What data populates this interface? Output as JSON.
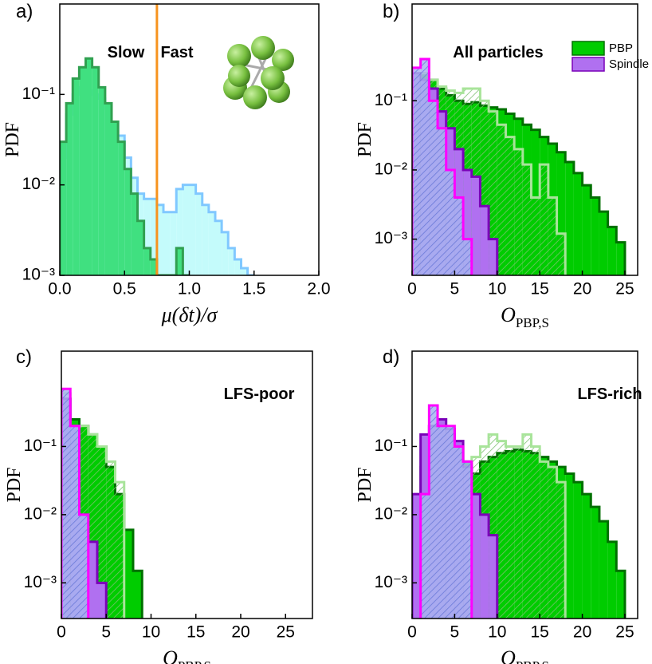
{
  "chart_data": [
    {
      "type": "histogram",
      "label": "a)",
      "ylabel": "PDF",
      "xlabel": "μ(δt)/σ",
      "log_y": true,
      "xlim": [
        0,
        2
      ],
      "xticks": [
        {
          "value": 0,
          "label": "0.0"
        },
        {
          "value": 0.5,
          "label": "0.5"
        },
        {
          "value": 1,
          "label": "1.0"
        },
        {
          "value": 1.5,
          "label": "1.5"
        },
        {
          "value": 2,
          "label": "2.0"
        }
      ],
      "ylim": [
        0.001,
        1
      ],
      "yticks": [
        {
          "value": 0.001,
          "label": "10⁻³"
        },
        {
          "value": 0.01,
          "label": "10⁻²"
        },
        {
          "value": 0.1,
          "label": "10⁻¹"
        }
      ],
      "annotations": [
        "Slow",
        "Fast"
      ],
      "vline": {
        "x": 0.75,
        "color": "#f7931e"
      },
      "series": [
        {
          "color": "#80c8ff",
          "fill": "#c4fbfb",
          "bins": [
            0,
            0.05,
            0.1,
            0.15,
            0.2,
            0.25,
            0.3,
            0.35,
            0.4,
            0.45,
            0.5,
            0.55,
            0.6,
            0.65,
            0.7,
            0.75,
            0.8,
            0.85,
            0.9,
            0.95,
            1.0,
            1.05,
            1.1,
            1.15,
            1.2,
            1.25,
            1.3,
            1.35,
            1.4,
            1.45,
            1.5
          ],
          "values": [
            0.02,
            0.06,
            0.1,
            0.12,
            0.11,
            0.1,
            0.09,
            0.07,
            0.05,
            0.035,
            0.02,
            0.012,
            0.008,
            0.007,
            0.007,
            0.006,
            0.005,
            0.005,
            0.009,
            0.01,
            0.01,
            0.008,
            0.006,
            0.005,
            0.004,
            0.003,
            0.002,
            0.0015,
            0.0012,
            0.001
          ]
        },
        {
          "color": "#30a050",
          "fill": "#40e080",
          "bins": [
            0,
            0.05,
            0.1,
            0.15,
            0.2,
            0.25,
            0.3,
            0.35,
            0.4,
            0.45,
            0.5,
            0.55,
            0.6,
            0.65,
            0.7,
            0.75,
            0.8,
            0.85,
            0.9,
            0.95,
            1.0
          ],
          "values": [
            0.03,
            0.08,
            0.15,
            0.2,
            0.25,
            0.2,
            0.12,
            0.08,
            0.05,
            0.03,
            0.015,
            0.008,
            0.004,
            0.002,
            0.0015,
            0.001,
            0.001,
            0.001,
            0.002,
            0.001
          ]
        }
      ]
    },
    {
      "type": "histogram",
      "label": "b)",
      "ylabel": "PDF",
      "xlabel": "O",
      "xlabel_sub": "PBP,S",
      "log_y": true,
      "xlim": [
        0,
        26.5
      ],
      "xticks": [
        0,
        5,
        10,
        15,
        20,
        25
      ],
      "ylim": [
        0.0003,
        2.5
      ],
      "yticks": [
        {
          "value": 0.001,
          "label": "10⁻³"
        },
        {
          "value": 0.01,
          "label": "10⁻²"
        },
        {
          "value": 0.1,
          "label": "10⁻¹"
        }
      ],
      "annotations": [
        "All particles"
      ],
      "legend": "upper right",
      "series": [
        {
          "name": "PBP",
          "color": "#007000",
          "fill": "#00cc00",
          "bins": [
            0,
            1,
            2,
            3,
            4,
            5,
            6,
            7,
            8,
            9,
            10,
            11,
            12,
            13,
            14,
            15,
            16,
            17,
            18,
            19,
            20,
            21,
            22,
            23,
            24,
            25
          ],
          "values": [
            0.2,
            0.25,
            0.2,
            0.15,
            0.12,
            0.1,
            0.09,
            0.095,
            0.085,
            0.08,
            0.075,
            0.065,
            0.055,
            0.045,
            0.038,
            0.03,
            0.024,
            0.018,
            0.013,
            0.009,
            0.006,
            0.004,
            0.0025,
            0.0015,
            0.0009
          ]
        },
        {
          "color": "#a8e49a",
          "hatch": "#7cc070",
          "bins": [
            0,
            1,
            2,
            3,
            4,
            5,
            6,
            7,
            8,
            9,
            10,
            11,
            12,
            13,
            14,
            15,
            16,
            17,
            18
          ],
          "values": [
            0.2,
            0.25,
            0.2,
            0.16,
            0.14,
            0.13,
            0.15,
            0.15,
            0.1,
            0.07,
            0.045,
            0.03,
            0.02,
            0.012,
            0.004,
            0.012,
            0.004,
            0.0012
          ]
        },
        {
          "name": "Spindle",
          "color": "#7a00b8",
          "fill": "#b070f0",
          "bins": [
            0,
            1,
            2,
            3,
            4,
            5,
            6,
            7,
            8,
            9,
            10
          ],
          "values": [
            0.25,
            0.2,
            0.15,
            0.07,
            0.04,
            0.02,
            0.01,
            0.008,
            0.003,
            0.001
          ]
        },
        {
          "color": "#ff00ff",
          "hatch": "#6a7ad8",
          "fill": "#a8b4f0",
          "bins": [
            0,
            1,
            2,
            3,
            4,
            5,
            6,
            7
          ],
          "values": [
            0.3,
            0.4,
            0.1,
            0.04,
            0.01,
            0.004,
            0.001
          ]
        }
      ]
    },
    {
      "type": "histogram",
      "label": "c)",
      "ylabel": "PDF",
      "xlabel": "O",
      "xlabel_sub": "PBP,S",
      "log_y": true,
      "xlim": [
        0,
        28
      ],
      "xticks": [
        0,
        5,
        10,
        15,
        20,
        25
      ],
      "ylim": [
        0.0003,
        2.5
      ],
      "yticks": [
        {
          "value": 0.001,
          "label": "10⁻³"
        },
        {
          "value": 0.01,
          "label": "10⁻²"
        },
        {
          "value": 0.1,
          "label": "10⁻¹"
        }
      ],
      "annotations": [
        "LFS-poor"
      ],
      "series": [
        {
          "color": "#007000",
          "fill": "#00cc00",
          "bins": [
            0,
            1,
            2,
            3,
            4,
            5,
            6,
            7,
            8,
            9
          ],
          "values": [
            0.5,
            0.25,
            0.2,
            0.15,
            0.1,
            0.05,
            0.02,
            0.006,
            0.0015
          ]
        },
        {
          "color": "#a8e49a",
          "hatch": "#7cc070",
          "bins": [
            0,
            1,
            2,
            3,
            4,
            5,
            6,
            7
          ],
          "values": [
            0.6,
            0.2,
            0.2,
            0.15,
            0.1,
            0.06,
            0.03
          ]
        },
        {
          "color": "#7a00b8",
          "fill": "#b070f0",
          "bins": [
            0,
            1,
            2,
            3,
            4,
            5
          ],
          "values": [
            0.5,
            0.2,
            0.01,
            0.004,
            0.001
          ]
        },
        {
          "color": "#ff00ff",
          "hatch": "#6a7ad8",
          "fill": "#a8b4f0",
          "bins": [
            0,
            1,
            2,
            3
          ],
          "values": [
            0.7,
            0.2,
            0.01
          ]
        }
      ]
    },
    {
      "type": "histogram",
      "label": "d)",
      "ylabel": "PDF",
      "xlabel": "O",
      "xlabel_sub": "PBP,S",
      "log_y": true,
      "xlim": [
        0,
        26.5
      ],
      "xticks": [
        0,
        5,
        10,
        15,
        20,
        25
      ],
      "ylim": [
        0.0003,
        2.5
      ],
      "yticks": [
        {
          "value": 0.001,
          "label": "10⁻³"
        },
        {
          "value": 0.01,
          "label": "10⁻²"
        },
        {
          "value": 0.1,
          "label": "10⁻¹"
        }
      ],
      "annotations": [
        "LFS-rich"
      ],
      "series": [
        {
          "color": "#007000",
          "fill": "#00cc00",
          "bins": [
            0,
            1,
            2,
            3,
            4,
            5,
            6,
            7,
            8,
            9,
            10,
            11,
            12,
            13,
            14,
            15,
            16,
            17,
            18,
            19,
            20,
            21,
            22,
            23,
            24,
            25
          ],
          "values": [
            0.012,
            0.05,
            0.15,
            0.2,
            0.15,
            0.1,
            0.06,
            0.04,
            0.06,
            0.07,
            0.08,
            0.085,
            0.09,
            0.085,
            0.08,
            0.07,
            0.06,
            0.05,
            0.04,
            0.03,
            0.02,
            0.013,
            0.008,
            0.004,
            0.0015
          ]
        },
        {
          "color": "#a8e49a",
          "hatch": "#7cc070",
          "bins": [
            0,
            1,
            2,
            3,
            4,
            5,
            6,
            7,
            8,
            9,
            10,
            11,
            12,
            13,
            14,
            15,
            16,
            17,
            18
          ],
          "values": [
            0.01,
            0.1,
            0.2,
            0.15,
            0.1,
            0.06,
            0.04,
            0.07,
            0.1,
            0.15,
            0.12,
            0.1,
            0.1,
            0.15,
            0.1,
            0.06,
            0.05,
            0.03
          ]
        },
        {
          "color": "#7a00b8",
          "fill": "#b070f0",
          "bins": [
            0,
            1,
            2,
            3,
            4,
            5,
            6,
            7,
            8,
            9,
            10
          ],
          "values": [
            0.02,
            0.15,
            0.2,
            0.25,
            0.18,
            0.12,
            0.05,
            0.02,
            0.01,
            0.005
          ]
        },
        {
          "color": "#ff00ff",
          "hatch": "#6a7ad8",
          "fill": "#a8b4f0",
          "bins": [
            1,
            2,
            3,
            4,
            5,
            6,
            7
          ],
          "values": [
            0.02,
            0.4,
            0.2,
            0.2,
            0.1,
            0.06
          ]
        }
      ]
    }
  ]
}
